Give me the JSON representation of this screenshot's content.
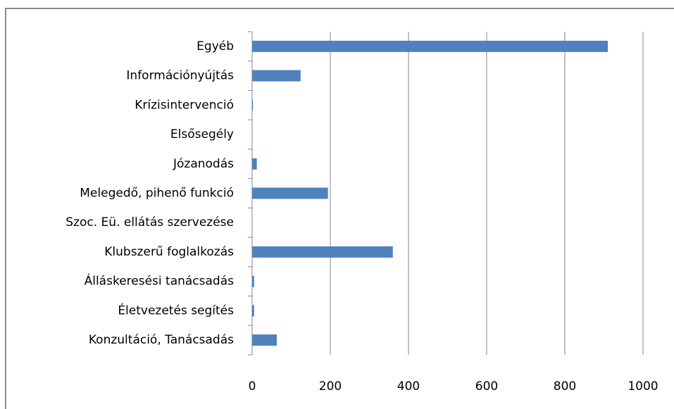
{
  "chart_data": {
    "type": "hbar",
    "categories": [
      "Egyéb",
      "Információnyújtás",
      "Krízisintervenció",
      "Elsősegély",
      "Józanodás",
      "Melegedő, pihenő funkció",
      "Szoc. Eü. ellátás szervezése",
      "Klubszerű foglalkozás",
      "Álláskeresési tanácsadás",
      "Életvezetés segítés",
      "Konzultáció, Tanácsadás"
    ],
    "values": [
      910,
      124,
      2,
      0,
      12,
      194,
      0,
      360,
      5,
      5,
      63
    ],
    "color": "#4f81bd",
    "xlim": [
      0,
      1000
    ],
    "xticks": [
      0,
      200,
      400,
      600,
      800,
      1000
    ],
    "grid": true
  }
}
